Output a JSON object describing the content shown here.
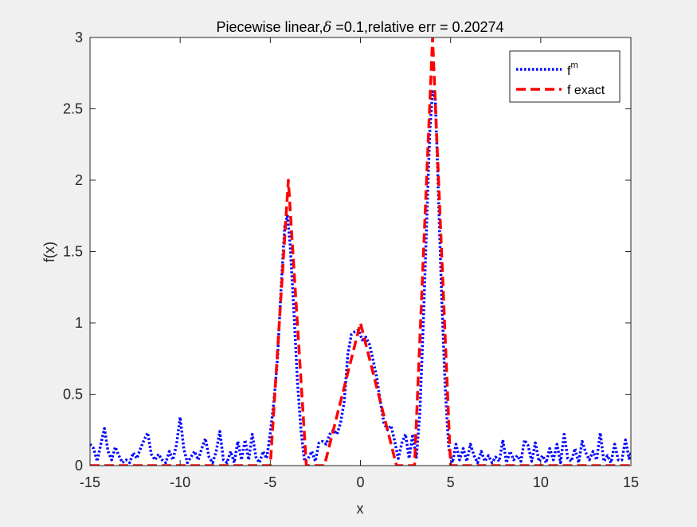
{
  "chart_data": {
    "type": "line",
    "title_parts": {
      "prefix": "Piecewise linear,",
      "delta_symbol": "δ",
      "suffix": " =0.1,relative err = 0.20274"
    },
    "xlabel": "x",
    "ylabel": "f(x)",
    "xlim": [
      -15,
      15
    ],
    "ylim": [
      0,
      3
    ],
    "grid": false,
    "legend_placement": "top-right",
    "x_ticks": [
      -15,
      -10,
      -5,
      0,
      5,
      10,
      15
    ],
    "y_ticks": [
      0,
      0.5,
      1,
      1.5,
      2,
      2.5,
      3
    ],
    "x_tick_labels": [
      "-15",
      "-10",
      "-5",
      "0",
      "5",
      "10",
      "15"
    ],
    "y_tick_labels": [
      "0",
      "0.5",
      "1",
      "1.5",
      "2",
      "2.5",
      "3"
    ],
    "series": [
      {
        "name_base": "f",
        "name_sup": "m",
        "color": "#0000ff",
        "style": "dotted",
        "points": [
          [
            -15.0,
            0.15
          ],
          [
            -14.8,
            0.12
          ],
          [
            -14.6,
            0.03
          ],
          [
            -14.4,
            0.15
          ],
          [
            -14.2,
            0.26
          ],
          [
            -14.0,
            0.1
          ],
          [
            -13.8,
            0.04
          ],
          [
            -13.6,
            0.13
          ],
          [
            -13.4,
            0.07
          ],
          [
            -13.2,
            0.02
          ],
          [
            -13.0,
            0.04
          ],
          [
            -12.8,
            0.02
          ],
          [
            -12.6,
            0.09
          ],
          [
            -12.4,
            0.05
          ],
          [
            -12.2,
            0.12
          ],
          [
            -12.0,
            0.18
          ],
          [
            -11.8,
            0.23
          ],
          [
            -11.6,
            0.08
          ],
          [
            -11.4,
            0.04
          ],
          [
            -11.2,
            0.08
          ],
          [
            -11.0,
            0.04
          ],
          [
            -10.8,
            0.02
          ],
          [
            -10.6,
            0.1
          ],
          [
            -10.4,
            0.04
          ],
          [
            -10.2,
            0.15
          ],
          [
            -10.0,
            0.34
          ],
          [
            -9.8,
            0.12
          ],
          [
            -9.6,
            0.02
          ],
          [
            -9.4,
            0.06
          ],
          [
            -9.2,
            0.1
          ],
          [
            -9.0,
            0.04
          ],
          [
            -8.8,
            0.12
          ],
          [
            -8.6,
            0.19
          ],
          [
            -8.4,
            0.06
          ],
          [
            -8.2,
            0.02
          ],
          [
            -8.0,
            0.1
          ],
          [
            -7.8,
            0.24
          ],
          [
            -7.6,
            0.04
          ],
          [
            -7.4,
            0.02
          ],
          [
            -7.2,
            0.1
          ],
          [
            -7.0,
            0.02
          ],
          [
            -6.8,
            0.17
          ],
          [
            -6.6,
            0.04
          ],
          [
            -6.4,
            0.18
          ],
          [
            -6.2,
            0.04
          ],
          [
            -6.0,
            0.22
          ],
          [
            -5.8,
            0.06
          ],
          [
            -5.6,
            0.02
          ],
          [
            -5.4,
            0.1
          ],
          [
            -5.2,
            0.05
          ],
          [
            -5.0,
            0.23
          ],
          [
            -4.8,
            0.45
          ],
          [
            -4.6,
            0.75
          ],
          [
            -4.4,
            1.25
          ],
          [
            -4.2,
            1.68
          ],
          [
            -4.05,
            1.75
          ],
          [
            -3.9,
            1.55
          ],
          [
            -3.7,
            1.1
          ],
          [
            -3.5,
            0.6
          ],
          [
            -3.3,
            0.25
          ],
          [
            -3.1,
            0.03
          ],
          [
            -2.9,
            0.05
          ],
          [
            -2.7,
            0.1
          ],
          [
            -2.5,
            0.03
          ],
          [
            -2.3,
            0.16
          ],
          [
            -2.1,
            0.17
          ],
          [
            -1.9,
            0.15
          ],
          [
            -1.7,
            0.22
          ],
          [
            -1.5,
            0.25
          ],
          [
            -1.3,
            0.22
          ],
          [
            -1.1,
            0.3
          ],
          [
            -0.9,
            0.45
          ],
          [
            -0.7,
            0.78
          ],
          [
            -0.5,
            0.92
          ],
          [
            -0.3,
            0.94
          ],
          [
            -0.1,
            0.95
          ],
          [
            0.1,
            0.88
          ],
          [
            0.3,
            0.9
          ],
          [
            0.5,
            0.85
          ],
          [
            0.7,
            0.74
          ],
          [
            0.9,
            0.62
          ],
          [
            1.1,
            0.45
          ],
          [
            1.3,
            0.3
          ],
          [
            1.5,
            0.25
          ],
          [
            1.7,
            0.28
          ],
          [
            1.9,
            0.17
          ],
          [
            2.1,
            0.05
          ],
          [
            2.3,
            0.16
          ],
          [
            2.5,
            0.22
          ],
          [
            2.7,
            0.05
          ],
          [
            2.9,
            0.22
          ],
          [
            3.1,
            0.05
          ],
          [
            3.3,
            0.38
          ],
          [
            3.5,
            1.05
          ],
          [
            3.7,
            1.8
          ],
          [
            3.85,
            2.35
          ],
          [
            4.0,
            2.62
          ],
          [
            4.15,
            2.58
          ],
          [
            4.3,
            2.0
          ],
          [
            4.5,
            1.2
          ],
          [
            4.7,
            0.55
          ],
          [
            4.9,
            0.12
          ],
          [
            5.1,
            0.02
          ],
          [
            5.3,
            0.15
          ],
          [
            5.5,
            0.04
          ],
          [
            5.7,
            0.12
          ],
          [
            5.9,
            0.03
          ],
          [
            6.1,
            0.15
          ],
          [
            6.3,
            0.07
          ],
          [
            6.5,
            0.02
          ],
          [
            6.7,
            0.1
          ],
          [
            6.9,
            0.03
          ],
          [
            7.1,
            0.07
          ],
          [
            7.3,
            0.02
          ],
          [
            7.5,
            0.06
          ],
          [
            7.7,
            0.03
          ],
          [
            7.9,
            0.18
          ],
          [
            8.1,
            0.02
          ],
          [
            8.3,
            0.1
          ],
          [
            8.5,
            0.04
          ],
          [
            8.7,
            0.07
          ],
          [
            8.9,
            0.03
          ],
          [
            9.1,
            0.18
          ],
          [
            9.3,
            0.14
          ],
          [
            9.5,
            0.03
          ],
          [
            9.7,
            0.16
          ],
          [
            9.9,
            0.03
          ],
          [
            10.1,
            0.07
          ],
          [
            10.3,
            0.02
          ],
          [
            10.5,
            0.12
          ],
          [
            10.7,
            0.04
          ],
          [
            10.9,
            0.15
          ],
          [
            11.1,
            0.02
          ],
          [
            11.3,
            0.22
          ],
          [
            11.5,
            0.05
          ],
          [
            11.7,
            0.03
          ],
          [
            11.9,
            0.12
          ],
          [
            12.1,
            0.02
          ],
          [
            12.3,
            0.17
          ],
          [
            12.5,
            0.09
          ],
          [
            12.7,
            0.04
          ],
          [
            12.9,
            0.1
          ],
          [
            13.1,
            0.04
          ],
          [
            13.3,
            0.23
          ],
          [
            13.5,
            0.03
          ],
          [
            13.7,
            0.07
          ],
          [
            13.9,
            0.02
          ],
          [
            14.1,
            0.15
          ],
          [
            14.3,
            0.04
          ],
          [
            14.5,
            0.04
          ],
          [
            14.7,
            0.18
          ],
          [
            14.9,
            0.05
          ],
          [
            15.0,
            0.09
          ]
        ]
      },
      {
        "name": "f exact",
        "color": "#ff0000",
        "style": "dashed",
        "points": [
          [
            -15.0,
            0.0
          ],
          [
            -5.0,
            0.0
          ],
          [
            -4.6,
            0.8
          ],
          [
            -4.4,
            1.2
          ],
          [
            -4.2,
            1.6
          ],
          [
            -4.0,
            2.0
          ],
          [
            -3.6,
            1.2
          ],
          [
            -3.3,
            0.6
          ],
          [
            -3.0,
            0.0
          ],
          [
            -2.0,
            0.0
          ],
          [
            -1.5,
            0.25
          ],
          [
            -1.0,
            0.5
          ],
          [
            -0.5,
            0.75
          ],
          [
            0.0,
            1.0
          ],
          [
            0.5,
            0.75
          ],
          [
            1.0,
            0.5
          ],
          [
            1.5,
            0.25
          ],
          [
            2.0,
            0.0
          ],
          [
            3.0,
            0.0
          ],
          [
            3.4,
            1.2
          ],
          [
            3.7,
            2.1
          ],
          [
            4.0,
            3.0
          ],
          [
            4.3,
            2.1
          ],
          [
            4.6,
            1.2
          ],
          [
            5.0,
            0.0
          ],
          [
            15.0,
            0.0
          ]
        ]
      }
    ]
  }
}
